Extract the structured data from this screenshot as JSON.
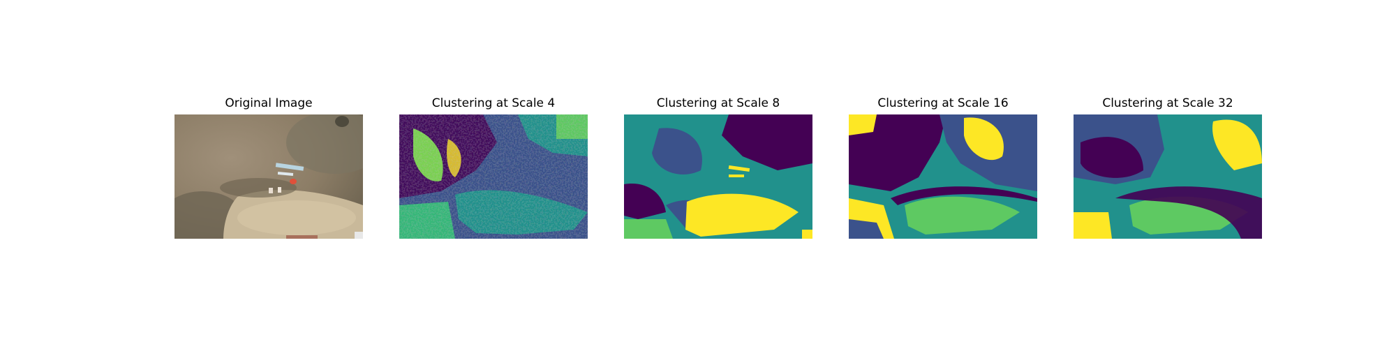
{
  "figure": {
    "panels": [
      {
        "title": "Original Image",
        "kind": "aerial-photo"
      },
      {
        "title": "Clustering at Scale 4",
        "kind": "cluster-map"
      },
      {
        "title": "Clustering at Scale 8",
        "kind": "cluster-map"
      },
      {
        "title": "Clustering at Scale 16",
        "kind": "cluster-map"
      },
      {
        "title": "Clustering at Scale 32",
        "kind": "cluster-map"
      }
    ],
    "palette": {
      "dark_purple": "#440154",
      "blue": "#3b528b",
      "teal": "#21918c",
      "green": "#5ec962",
      "yellow": "#fde725"
    }
  }
}
